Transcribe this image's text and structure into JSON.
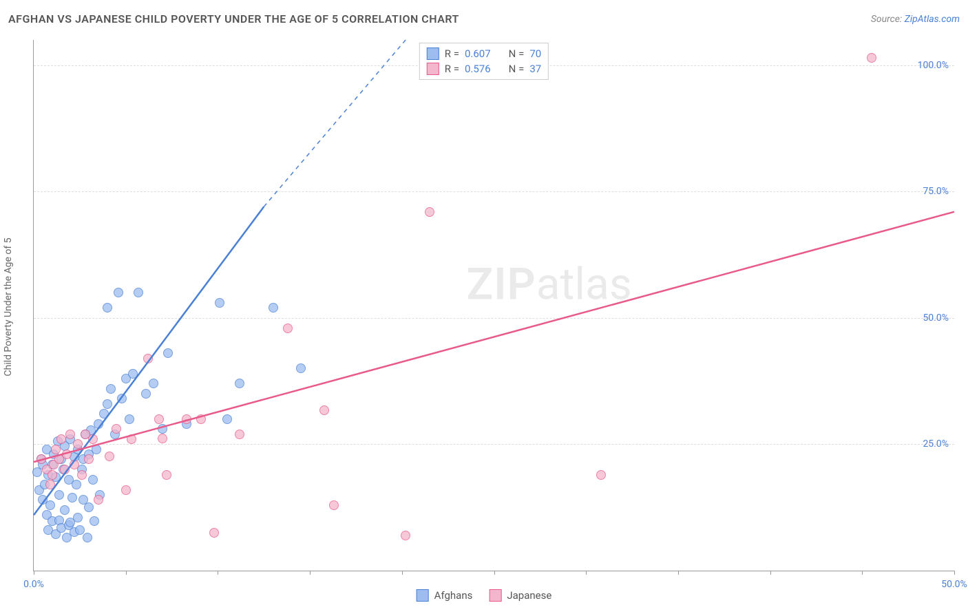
{
  "title": "AFGHAN VS JAPANESE CHILD POVERTY UNDER THE AGE OF 5 CORRELATION CHART",
  "source_prefix": "Source: ",
  "source_link": "ZipAtlas.com",
  "y_axis_label": "Child Poverty Under the Age of 5",
  "chart": {
    "type": "scatter",
    "xlim": [
      0,
      50
    ],
    "ylim": [
      0,
      105
    ],
    "x_ticks": [
      0,
      5,
      10,
      15,
      20,
      25,
      30,
      35,
      40,
      45,
      50
    ],
    "x_tick_labels": {
      "0": "0.0%",
      "50": "50.0%"
    },
    "y_ticks": [
      25,
      50,
      75,
      100
    ],
    "y_tick_labels": {
      "25": "25.0%",
      "50": "50.0%",
      "75": "75.0%",
      "100": "100.0%"
    },
    "background_color": "#ffffff",
    "grid_color": "#dddddd",
    "axis_color": "#999999",
    "tick_label_color": "#4a80d6",
    "marker_radius": 7,
    "marker_fill_opacity": 0.35,
    "marker_stroke_width": 1.3,
    "series": [
      {
        "name": "Afghans",
        "color_stroke": "#4a80d6",
        "color_fill": "#9dbdf0",
        "R": "0.607",
        "N": "70",
        "trendline": {
          "x1": 0,
          "y1": 11,
          "x2": 12.5,
          "y2": 72,
          "extend_dash_to": {
            "x": 20.2,
            "y": 105
          }
        },
        "points": [
          [
            0.2,
            19.5
          ],
          [
            0.3,
            16
          ],
          [
            0.4,
            22
          ],
          [
            0.5,
            14
          ],
          [
            0.5,
            21
          ],
          [
            0.6,
            17
          ],
          [
            0.7,
            11
          ],
          [
            0.7,
            24
          ],
          [
            0.8,
            19
          ],
          [
            0.8,
            8
          ],
          [
            0.9,
            13
          ],
          [
            1.0,
            21
          ],
          [
            1.0,
            9.8
          ],
          [
            1.1,
            23
          ],
          [
            1.2,
            7.2
          ],
          [
            1.2,
            18.5
          ],
          [
            1.3,
            25.6
          ],
          [
            1.4,
            15
          ],
          [
            1.4,
            10
          ],
          [
            1.5,
            22
          ],
          [
            1.5,
            8.5
          ],
          [
            1.6,
            20
          ],
          [
            1.7,
            12
          ],
          [
            1.7,
            24.7
          ],
          [
            1.8,
            6.5
          ],
          [
            1.9,
            18
          ],
          [
            1.9,
            9
          ],
          [
            2.0,
            26
          ],
          [
            2.0,
            9.5
          ],
          [
            2.1,
            14.5
          ],
          [
            2.2,
            22.5
          ],
          [
            2.2,
            7.6
          ],
          [
            2.3,
            17
          ],
          [
            2.4,
            10.5
          ],
          [
            2.4,
            24
          ],
          [
            2.5,
            8
          ],
          [
            2.6,
            20
          ],
          [
            2.7,
            14
          ],
          [
            2.7,
            22
          ],
          [
            2.8,
            27
          ],
          [
            2.9,
            6.5
          ],
          [
            3.0,
            23
          ],
          [
            3.0,
            12.5
          ],
          [
            3.1,
            27.8
          ],
          [
            3.2,
            18
          ],
          [
            3.3,
            9.8
          ],
          [
            3.4,
            24
          ],
          [
            3.5,
            29
          ],
          [
            3.6,
            15
          ],
          [
            3.8,
            31
          ],
          [
            4.0,
            33
          ],
          [
            4.0,
            52
          ],
          [
            4.2,
            36
          ],
          [
            4.4,
            27
          ],
          [
            4.6,
            55
          ],
          [
            4.8,
            34
          ],
          [
            5.0,
            38
          ],
          [
            5.2,
            30
          ],
          [
            5.4,
            39
          ],
          [
            5.7,
            55
          ],
          [
            6.1,
            35
          ],
          [
            6.5,
            37
          ],
          [
            7.0,
            28
          ],
          [
            7.3,
            43
          ],
          [
            8.3,
            29
          ],
          [
            10.1,
            53
          ],
          [
            10.5,
            30
          ],
          [
            11.2,
            37
          ],
          [
            13.0,
            52
          ],
          [
            14.5,
            40
          ]
        ]
      },
      {
        "name": "Japanese",
        "color_stroke": "#e85a8a",
        "color_fill": "#f4b6cc",
        "R": "0.576",
        "N": "37",
        "trendline": {
          "x1": 0,
          "y1": 21.5,
          "x2": 50,
          "y2": 71
        },
        "points": [
          [
            0.4,
            22
          ],
          [
            0.7,
            20
          ],
          [
            0.9,
            17
          ],
          [
            1.0,
            19
          ],
          [
            1.1,
            21
          ],
          [
            1.2,
            24
          ],
          [
            1.4,
            22
          ],
          [
            1.5,
            26
          ],
          [
            1.7,
            20
          ],
          [
            1.8,
            23
          ],
          [
            2.0,
            27
          ],
          [
            2.2,
            21
          ],
          [
            2.4,
            25
          ],
          [
            2.6,
            19
          ],
          [
            2.8,
            27
          ],
          [
            3.0,
            22
          ],
          [
            3.2,
            26
          ],
          [
            3.5,
            14
          ],
          [
            4.1,
            22.6
          ],
          [
            4.5,
            28
          ],
          [
            5.0,
            16
          ],
          [
            5.3,
            26
          ],
          [
            6.2,
            42
          ],
          [
            6.8,
            30
          ],
          [
            7.0,
            26.2
          ],
          [
            7.2,
            19
          ],
          [
            8.3,
            30
          ],
          [
            9.1,
            30
          ],
          [
            9.8,
            7.5
          ],
          [
            11.2,
            27
          ],
          [
            13.8,
            48
          ],
          [
            15.8,
            31.8
          ],
          [
            16.3,
            13
          ],
          [
            20.2,
            7
          ],
          [
            21.5,
            71
          ],
          [
            30.8,
            19
          ],
          [
            45.5,
            101.5
          ]
        ]
      }
    ]
  },
  "legend_rn": {
    "R_label": "R =",
    "N_label": "N ="
  },
  "bottom_legend": [
    "Afghans",
    "Japanese"
  ],
  "watermark": {
    "bold": "ZIP",
    "rest": "atlas"
  }
}
